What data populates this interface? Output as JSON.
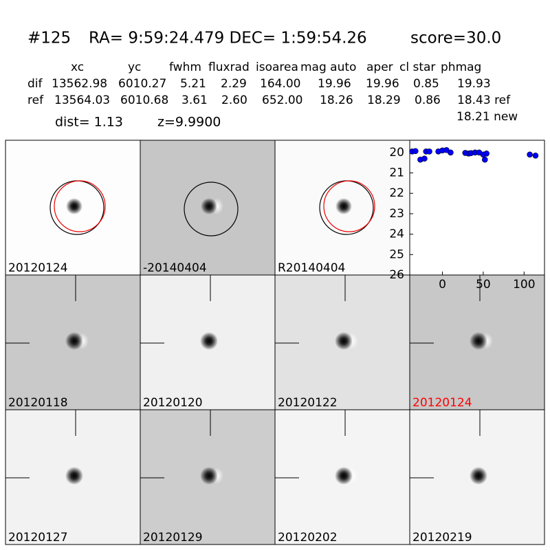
{
  "header": {
    "id": "#125",
    "coords": "RA= 9:59:24.479 DEC= 1:59:54.26",
    "score": "score=30.0"
  },
  "table": {
    "columns": [
      "xc",
      "yc",
      "fwhm",
      "fluxrad",
      "isoarea",
      "mag auto",
      "aper",
      "cl star",
      "phmag"
    ],
    "rows": [
      [
        "dif",
        "13562.98",
        "6010.27",
        "5.21",
        "2.29",
        "164.00",
        "19.96",
        "19.96",
        "0.85",
        "19.93"
      ],
      [
        "ref",
        "13564.03",
        "6010.68",
        "3.61",
        "2.60",
        "652.00",
        "18.26",
        "18.29",
        "0.86",
        "18.43 ref"
      ]
    ],
    "extra": "18.21 new"
  },
  "info": {
    "dist": "dist=  1.13",
    "z": "z=9.9900"
  },
  "panels": [
    "20120124",
    "-20140404",
    "R20140404",
    "20120118",
    "20120120",
    "20120122",
    "20120124",
    "20120127",
    "20120129",
    "20120202",
    "20120219"
  ],
  "chart_data": {
    "type": "scatter",
    "color": "#0000ff",
    "x": [
      -37,
      -33,
      -27,
      -22,
      -20,
      -16,
      -5,
      0,
      5,
      10,
      28,
      32,
      35,
      40,
      45,
      50,
      52,
      54,
      107,
      114
    ],
    "values": [
      19.95,
      19.93,
      20.35,
      20.3,
      19.95,
      19.95,
      19.95,
      19.9,
      19.88,
      20.0,
      20.02,
      20.05,
      20.03,
      20.0,
      20.0,
      20.1,
      20.35,
      20.05,
      20.1,
      20.15
    ],
    "xlim": [
      -40,
      125
    ],
    "ylim": [
      26,
      19.4
    ],
    "xticks": [
      0,
      50,
      100
    ],
    "yticks": [
      20,
      21,
      22,
      23,
      24,
      25,
      26
    ]
  }
}
